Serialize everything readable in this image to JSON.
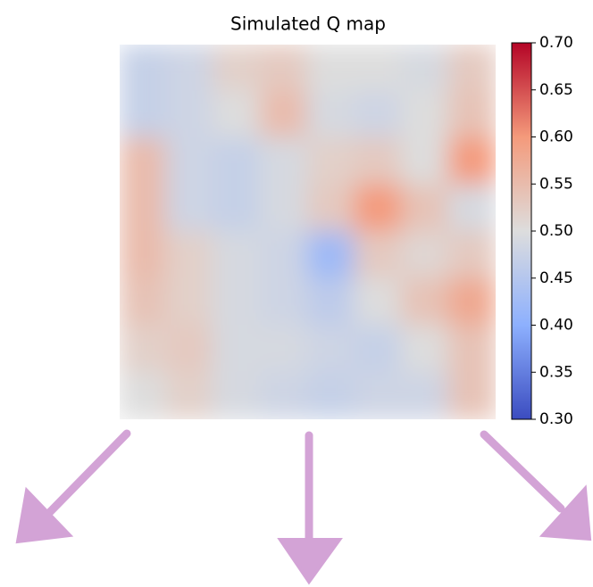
{
  "chart_data": {
    "type": "heatmap",
    "title": "Simulated Q map",
    "colormap": "coolwarm",
    "z": [
      [
        0.47,
        0.48,
        0.52,
        0.53,
        0.5,
        0.5,
        0.49,
        0.53
      ],
      [
        0.47,
        0.48,
        0.5,
        0.55,
        0.49,
        0.48,
        0.5,
        0.54
      ],
      [
        0.55,
        0.48,
        0.47,
        0.49,
        0.52,
        0.53,
        0.5,
        0.6
      ],
      [
        0.55,
        0.48,
        0.47,
        0.49,
        0.53,
        0.6,
        0.54,
        0.49
      ],
      [
        0.55,
        0.52,
        0.49,
        0.48,
        0.42,
        0.53,
        0.51,
        0.53
      ],
      [
        0.54,
        0.52,
        0.49,
        0.48,
        0.46,
        0.5,
        0.54,
        0.58
      ],
      [
        0.52,
        0.53,
        0.49,
        0.49,
        0.48,
        0.47,
        0.5,
        0.54
      ],
      [
        0.5,
        0.52,
        0.49,
        0.48,
        0.47,
        0.48,
        0.48,
        0.54
      ]
    ],
    "zlim": [
      0.3,
      0.7
    ],
    "zticks": [
      {
        "value": 0.3,
        "label": "0.30"
      },
      0.35,
      {
        "value": 0.4,
        "label": "0.40"
      },
      0.45,
      {
        "value": 0.5,
        "label": "0.50"
      },
      0.55,
      {
        "value": 0.6,
        "label": "0.60"
      },
      0.65,
      {
        "value": 0.7,
        "label": "0.70"
      }
    ]
  }
}
